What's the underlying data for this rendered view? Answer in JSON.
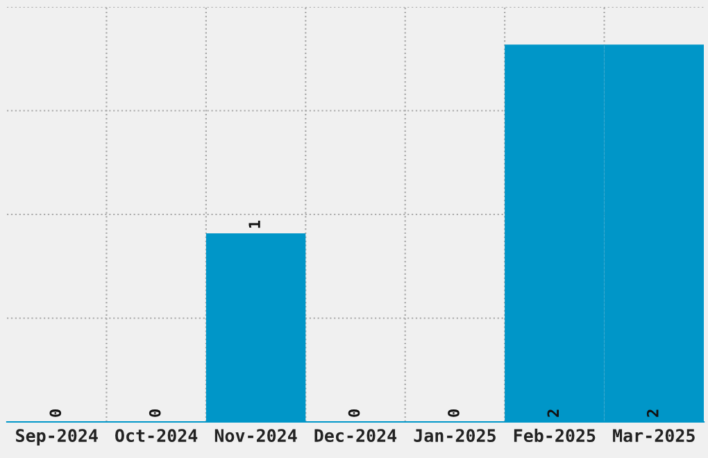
{
  "chart_data": {
    "type": "bar",
    "categories": [
      "Sep-2024",
      "Oct-2024",
      "Nov-2024",
      "Dec-2024",
      "Jan-2025",
      "Feb-2025",
      "Mar-2025"
    ],
    "values": [
      0,
      0,
      1,
      0,
      0,
      2,
      2
    ],
    "color": "#0096c8",
    "ylim": [
      0,
      2.2
    ],
    "yticks": [
      {
        "value": 0.55,
        "label": null
      },
      {
        "value": 1.1,
        "label": null
      },
      {
        "value": 1.65,
        "label": null
      },
      {
        "value": 2.2,
        "label": null
      }
    ],
    "tick_labels": "x",
    "grid": true,
    "data_labels": true
  }
}
